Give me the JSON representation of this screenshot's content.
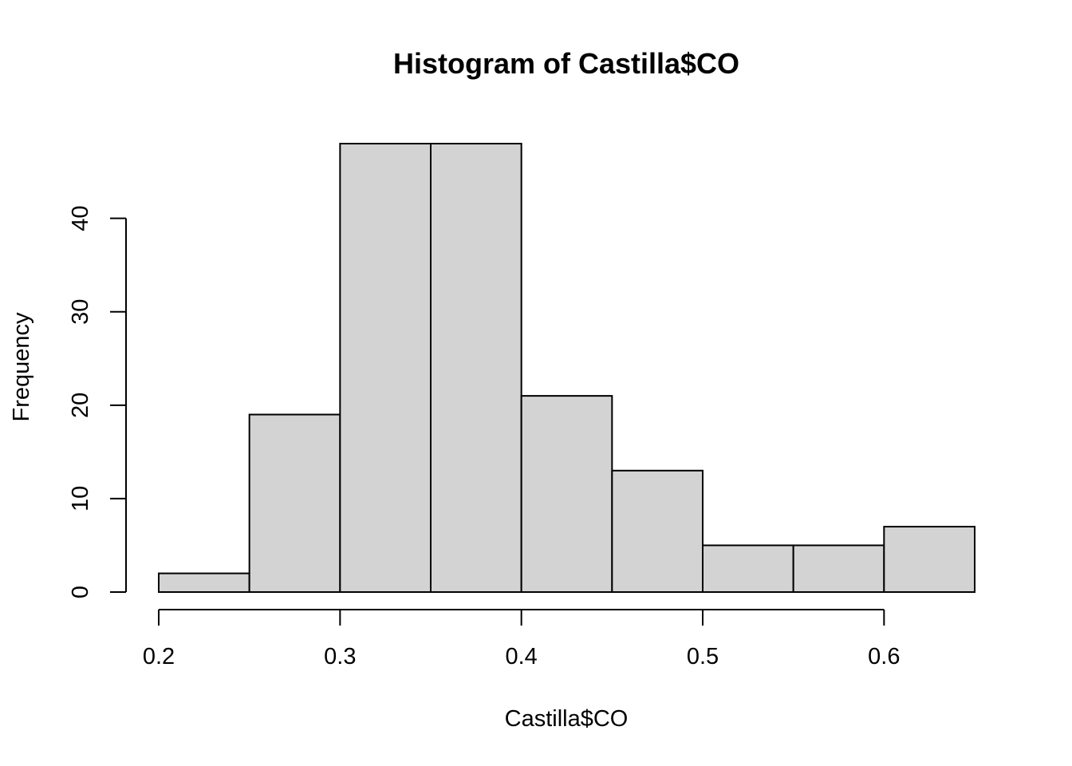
{
  "chart_data": {
    "type": "bar",
    "title": "Histogram of Castilla$CO",
    "xlabel": "Castilla$CO",
    "ylabel": "Frequency",
    "bin_edges": [
      0.2,
      0.25,
      0.3,
      0.35,
      0.4,
      0.45,
      0.5,
      0.55,
      0.6,
      0.65
    ],
    "values": [
      2,
      19,
      48,
      48,
      21,
      13,
      5,
      5,
      7
    ],
    "xticks": [
      0.2,
      0.3,
      0.4,
      0.5,
      0.6
    ],
    "xtick_labels": [
      "0.2",
      "0.3",
      "0.4",
      "0.5",
      "0.6"
    ],
    "yticks": [
      0,
      10,
      20,
      30,
      40
    ],
    "ytick_labels": [
      "0",
      "10",
      "20",
      "30",
      "40"
    ],
    "xlim": [
      0.2,
      0.65
    ],
    "ylim": [
      0,
      48
    ],
    "grid": false,
    "bar_color": "#d3d3d3"
  }
}
